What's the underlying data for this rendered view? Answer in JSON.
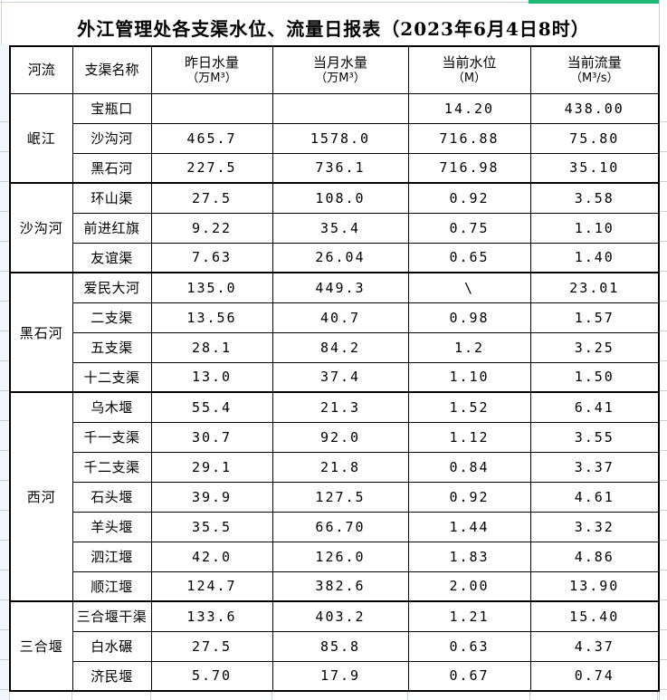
{
  "page": {
    "title": "外江管理处各支渠水位、流量日报表（2023年6月4日8时）"
  },
  "chrome": {
    "accent_green": "#1eb877",
    "gridline_blue": "#c6d3e2",
    "table_border": "#000000"
  },
  "table": {
    "columns": [
      {
        "label": "河流",
        "unit": ""
      },
      {
        "label": "支渠名称",
        "unit": ""
      },
      {
        "label": "昨日水量",
        "unit": "（万M³）"
      },
      {
        "label": "当月水量",
        "unit": "（万M³）"
      },
      {
        "label": "当前水位",
        "unit": "（M）"
      },
      {
        "label": "当前流量",
        "unit": "（M³/s）"
      }
    ],
    "groups": [
      {
        "river": "岷江",
        "rows": [
          [
            "宝瓶口",
            "",
            "",
            "14.20",
            "438.00"
          ],
          [
            "沙沟河",
            "465.7",
            "1578.0",
            "716.88",
            "75.80"
          ],
          [
            "黑石河",
            "227.5",
            "736.1",
            "716.98",
            "35.10"
          ]
        ]
      },
      {
        "river": "沙沟河",
        "rows": [
          [
            "环山渠",
            "27.5",
            "108.0",
            "0.92",
            "3.58"
          ],
          [
            "前进红旗",
            "9.22",
            "35.4",
            "0.75",
            "1.10"
          ],
          [
            "友谊渠",
            "7.63",
            "26.04",
            "0.65",
            "1.40"
          ]
        ]
      },
      {
        "river": "黑石河",
        "rows": [
          [
            "爱民大河",
            "135.0",
            "449.3",
            "\\",
            "23.01"
          ],
          [
            "二支渠",
            "13.56",
            "40.7",
            "0.98",
            "1.57"
          ],
          [
            "五支渠",
            "28.1",
            "84.2",
            "1.2",
            "3.25"
          ],
          [
            "十二支渠",
            "13.0",
            "37.4",
            "1.10",
            "1.50"
          ]
        ]
      },
      {
        "river": "西河",
        "rows": [
          [
            "乌木堰",
            "55.4",
            "21.3",
            "1.52",
            "6.41"
          ],
          [
            "千一支渠",
            "30.7",
            "92.0",
            "1.12",
            "3.55"
          ],
          [
            "千二支渠",
            "29.1",
            "21.8",
            "0.84",
            "3.37"
          ],
          [
            "石头堰",
            "39.9",
            "127.5",
            "0.92",
            "4.61"
          ],
          [
            "羊头堰",
            "35.5",
            "66.70",
            "1.44",
            "3.32"
          ],
          [
            "泗江堰",
            "42.0",
            "126.0",
            "1.83",
            "4.86"
          ],
          [
            "顺江堰",
            "124.7",
            "382.6",
            "2.00",
            "13.90"
          ]
        ]
      },
      {
        "river": "三合堰",
        "rows": [
          [
            "三合堰干渠",
            "133.6",
            "403.2",
            "1.21",
            "15.40"
          ],
          [
            "白水碾",
            "27.5",
            "85.8",
            "0.63",
            "4.37"
          ],
          [
            "济民堰",
            "5.70",
            "17.9",
            "0.67",
            "0.74"
          ]
        ]
      }
    ]
  }
}
